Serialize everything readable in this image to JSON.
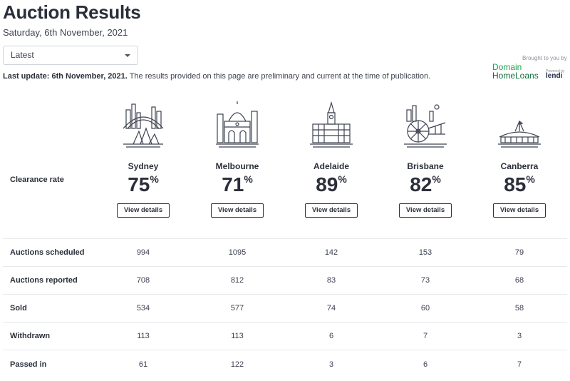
{
  "header": {
    "title": "Auction Results",
    "date": "Saturday, 6th November, 2021",
    "select_value": "Latest",
    "update_bold": "Last update: 6th November, 2021.",
    "update_rest": " The results provided on this page are preliminary and current at the time of publication."
  },
  "sponsor": {
    "label": "Brought to you by",
    "line1": "Domain",
    "line2": "HomeLoans",
    "powered": "Powered by",
    "lendi": "lendi"
  },
  "clearance_label": "Clearance rate",
  "view_details": "View details",
  "percent_sign": "%",
  "cities": [
    {
      "name": "Sydney",
      "rate": "75",
      "icon": "sydney-opera-house-icon"
    },
    {
      "name": "Melbourne",
      "rate": "71",
      "icon": "flinders-street-station-icon"
    },
    {
      "name": "Adelaide",
      "rate": "89",
      "icon": "adelaide-town-hall-icon"
    },
    {
      "name": "Brisbane",
      "rate": "82",
      "icon": "brisbane-wheel-icon"
    },
    {
      "name": "Canberra",
      "rate": "85",
      "icon": "parliament-house-icon"
    }
  ],
  "rows": [
    {
      "label": "Auctions scheduled",
      "values": [
        "994",
        "1095",
        "142",
        "153",
        "79"
      ]
    },
    {
      "label": "Auctions reported",
      "values": [
        "708",
        "812",
        "83",
        "73",
        "68"
      ]
    },
    {
      "label": "Sold",
      "values": [
        "534",
        "577",
        "74",
        "60",
        "58"
      ]
    },
    {
      "label": "Withdrawn",
      "values": [
        "113",
        "113",
        "6",
        "7",
        "3"
      ]
    },
    {
      "label": "Passed in",
      "values": [
        "61",
        "122",
        "3",
        "6",
        "7"
      ]
    }
  ]
}
